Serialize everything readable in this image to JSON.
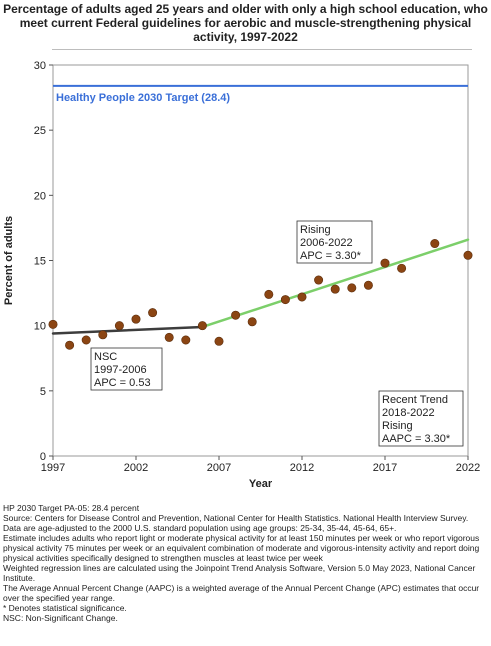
{
  "chart_data": {
    "type": "scatter",
    "title_lines": [
      "Percentage of adults aged 25 years and older with only a high school education, who",
      "meet current Federal guidelines for aerobic and muscle-strengthening physical",
      "activity, 1997-2022"
    ],
    "xlabel": "Year",
    "ylabel": "Percent of adults",
    "xlim": [
      1997,
      2022
    ],
    "ylim": [
      0,
      30
    ],
    "x_ticks": [
      1997,
      2002,
      2007,
      2012,
      2017,
      2022
    ],
    "y_ticks": [
      0,
      5,
      10,
      15,
      20,
      25,
      30
    ],
    "grid": false,
    "target": {
      "label": "Healthy People 2030 Target (28.4)",
      "value": 28.4,
      "color": "#3a6fd8"
    },
    "series": [
      {
        "points": [
          [
            1997,
            10.1
          ],
          [
            1998,
            8.5
          ],
          [
            1999,
            8.9
          ],
          [
            2000,
            9.3
          ],
          [
            2001,
            10.0
          ],
          [
            2002,
            10.5
          ],
          [
            2003,
            11.0
          ],
          [
            2004,
            9.1
          ],
          [
            2005,
            8.9
          ],
          [
            2006,
            10.0
          ],
          [
            2007,
            8.8
          ],
          [
            2008,
            10.8
          ],
          [
            2009,
            10.3
          ],
          [
            2010,
            12.4
          ],
          [
            2011,
            12.0
          ],
          [
            2012,
            12.2
          ],
          [
            2013,
            13.5
          ],
          [
            2014,
            12.8
          ],
          [
            2015,
            12.9
          ],
          [
            2016,
            13.1
          ],
          [
            2017,
            14.8
          ],
          [
            2018,
            14.4
          ],
          [
            2020,
            16.3
          ],
          [
            2022,
            15.4
          ]
        ],
        "color": "#8b4513"
      }
    ],
    "trend_lines": [
      {
        "start": [
          1997,
          9.4
        ],
        "end": [
          2006,
          9.9
        ],
        "color": "#3d3d3d"
      },
      {
        "start": [
          2006,
          9.9
        ],
        "end": [
          2022,
          16.6
        ],
        "color": "#7ccf6a"
      }
    ],
    "annotations": [
      {
        "lines": [
          "NSC",
          "1997-2006",
          "APC =  0.53"
        ]
      },
      {
        "lines": [
          "Rising",
          "2006-2022",
          "APC =  3.30*"
        ]
      },
      {
        "lines": [
          "Recent Trend",
          "2018-2022",
          "Rising",
          "AAPC =  3.30*"
        ]
      }
    ]
  },
  "footnotes": [
    "HP 2030 Target PA-05: 28.4 percent",
    "Source: Centers for Disease Control and Prevention, National Center for Health Statistics. National Health Interview Survey.",
    "Data are age-adjusted to the 2000 U.S. standard population using age groups: 25-34, 35-44, 45-64, 65+.",
    "Estimate includes adults who report light or moderate physical activity for at least 150 minutes per week or who report vigorous physical activity 75 minutes per week or an equivalent combination of moderate and vigorous-intensity activity and report doing physical activities specifically designed to strengthen muscles at least twice per week",
    "Weighted regression lines are calculated using the Joinpoint Trend Analysis Software, Version 5.0 May 2023, National Cancer Institute.",
    "The Average Annual Percent Change (AAPC) is a weighted average of the Annual Percent Change (APC) estimates that occur over the specified year range.",
    "* Denotes statistical significance.",
    "NSC: Non-Significant Change."
  ]
}
